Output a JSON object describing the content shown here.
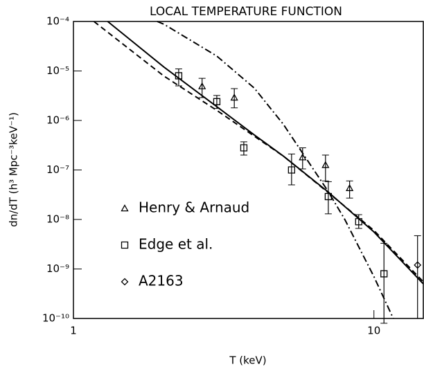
{
  "chart_data": {
    "type": "scatter",
    "title": "LOCAL TEMPERATURE FUNCTION",
    "x_label": "T (keV)",
    "y_label": "dn/dT (h³ Mpc⁻³keV⁻¹)",
    "log_x": true,
    "log_y": true,
    "xlim": [
      1,
      14.6
    ],
    "ylim": [
      1e-10,
      0.0001
    ],
    "xticks": [
      1,
      10
    ],
    "yticks": [
      {
        "value": 1e-10,
        "label": "10⁻¹⁰"
      },
      {
        "value": 1e-09,
        "label": "10⁻⁹"
      },
      {
        "value": 1e-08,
        "label": "10⁻⁸"
      },
      {
        "value": 1e-07,
        "label": "10⁻⁷"
      },
      {
        "value": 1e-06,
        "label": "10⁻⁶"
      },
      {
        "value": 1e-05,
        "label": "10⁻⁵"
      },
      {
        "value": 0.0001,
        "label": "10⁻⁴"
      }
    ],
    "series": [
      {
        "name": "Henry & Arnaud",
        "type": "scatter",
        "marker": "triangle",
        "color": "#000000",
        "x": [
          2.68,
          3.43,
          5.79,
          6.9,
          8.3
        ],
        "values": [
          4.9e-06,
          2.9e-06,
          1.8e-07,
          1.26e-07,
          4.3e-08
        ],
        "yerr_low": [
          2.9e-06,
          1.8e-06,
          1.05e-07,
          6e-08,
          2.7e-08
        ],
        "yerr_high": [
          7.1e-06,
          4.4e-06,
          2.8e-07,
          2e-07,
          6e-08
        ]
      },
      {
        "name": "Edge et al.",
        "type": "scatter",
        "marker": "square",
        "color": "#000000",
        "x": [
          2.24,
          3.0,
          3.69,
          5.32,
          7.05,
          8.9,
          10.8
        ],
        "values": [
          8e-06,
          2.4e-06,
          2.8e-07,
          1e-07,
          2.9e-08,
          9e-09,
          8e-10
        ],
        "yerr_low": [
          5e-06,
          1.75e-06,
          2e-07,
          5e-08,
          1.3e-08,
          6.6e-09,
          8e-11
        ],
        "yerr_high": [
          1.1e-05,
          3.2e-06,
          3.7e-07,
          2.1e-07,
          5.8e-08,
          1.25e-08,
          3.3e-09
        ]
      },
      {
        "name": "A2163",
        "type": "scatter",
        "marker": "diamond",
        "color": "#000000",
        "x": [
          13.97
        ],
        "values": [
          1.2e-09
        ],
        "yerr_low": [
          1e-10
        ],
        "yerr_high": [
          4.7e-09
        ]
      },
      {
        "type": "line",
        "style": "solid",
        "color": "#000000",
        "x": [
          1.3,
          2,
          3,
          4,
          5,
          7,
          10,
          14.6
        ],
        "values": [
          0.0001,
          1.2e-05,
          1.9e-06,
          5.1e-07,
          1.9e-07,
          3.7e-08,
          5.6e-09,
          5e-10
        ]
      },
      {
        "type": "line",
        "style": "dashed",
        "color": "#000000",
        "x": [
          1.17,
          2,
          3,
          4,
          5,
          7,
          10,
          14.6
        ],
        "values": [
          0.0001,
          7.9e-06,
          1.6e-06,
          4.8e-07,
          1.9e-07,
          3.6e-08,
          6e-09,
          5.5e-10
        ]
      },
      {
        "type": "line",
        "style": "dashdot",
        "color": "#000000",
        "x": [
          1.9,
          2,
          3,
          4,
          5,
          7,
          8,
          10,
          11.6
        ],
        "values": [
          0.0001,
          8.8e-05,
          2e-05,
          4.5e-06,
          8.3e-07,
          3.9e-08,
          1e-08,
          7e-10,
          1e-10
        ]
      }
    ]
  }
}
